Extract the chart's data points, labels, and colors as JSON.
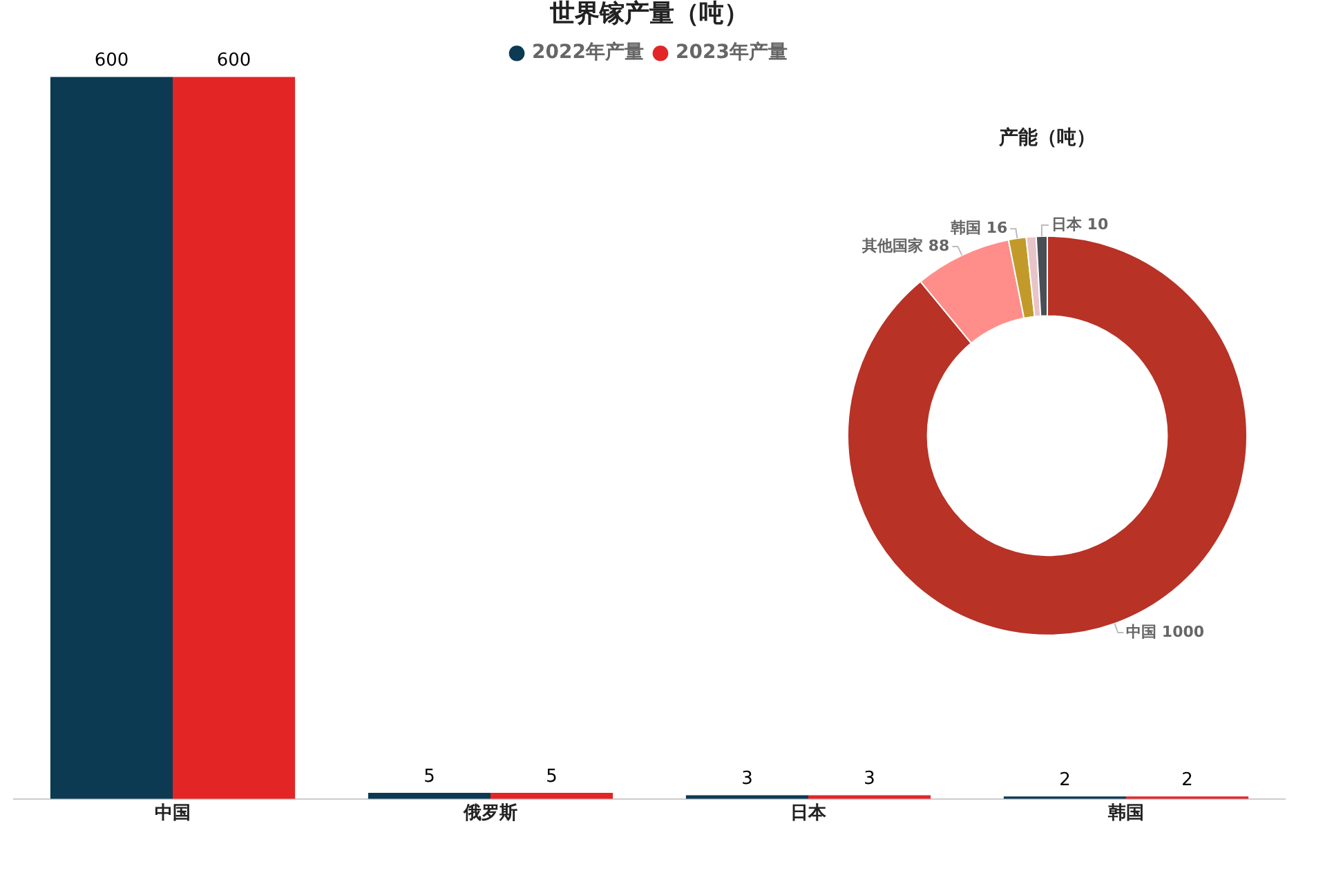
{
  "chart_data": [
    {
      "type": "bar",
      "title": "世界镓产量（吨）",
      "categories": [
        "中国",
        "俄罗斯",
        "日本",
        "韩国"
      ],
      "series": [
        {
          "name": "2022年产量",
          "color": "#0b3a52",
          "values": [
            600,
            5,
            3,
            2
          ]
        },
        {
          "name": "2023年产量",
          "color": "#e32526",
          "values": [
            600,
            5,
            3,
            2
          ]
        }
      ],
      "ylim": [
        0,
        600
      ],
      "data_labels": true,
      "legend": "top",
      "grid": false,
      "tick_labels": "x"
    },
    {
      "type": "donut",
      "title": "产能（吨）",
      "categories": [
        "中国",
        "其他国家",
        "韩国",
        null,
        "日本"
      ],
      "values": [
        1000,
        88,
        16,
        9,
        10
      ],
      "colors": [
        "#b83226",
        "#ff8e8b",
        "#c29a2a",
        "#e8c4c8",
        "#4a4f55"
      ],
      "value_labels": [
        "1000",
        "88",
        "16",
        null,
        "10"
      ],
      "legend": false
    }
  ]
}
